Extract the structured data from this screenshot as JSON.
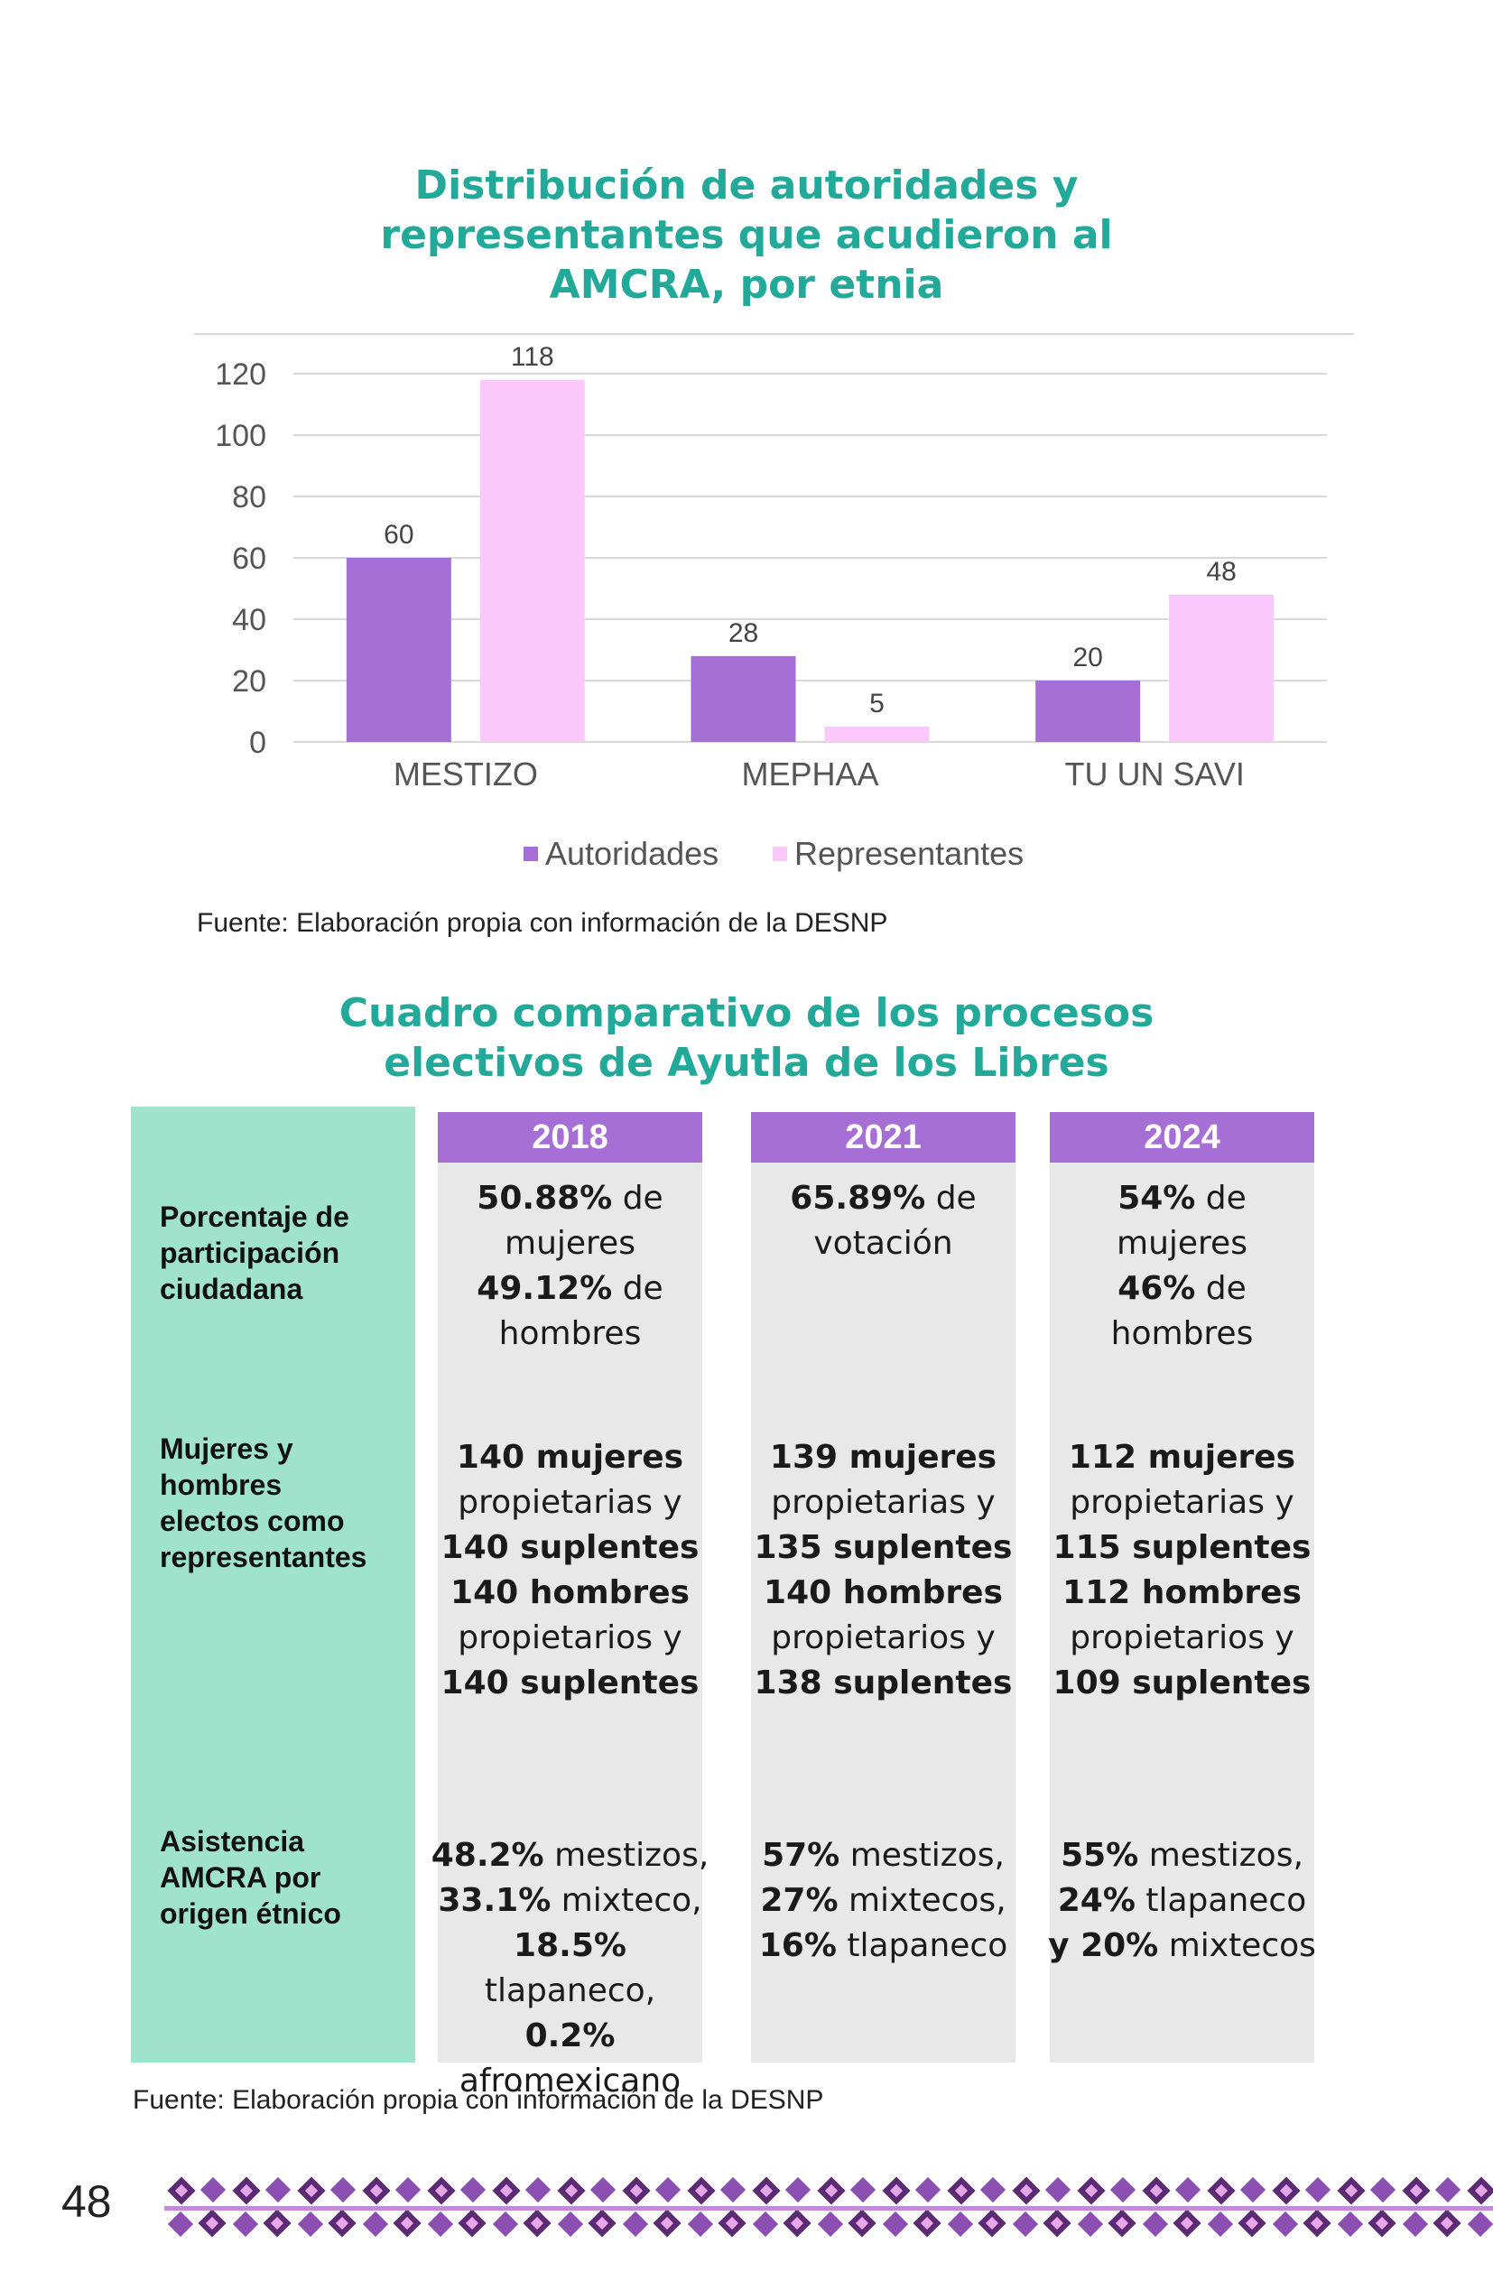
{
  "chart_data": {
    "type": "bar",
    "title": "Distribución de autoridades y representantes que acudieron al AMCRA, por etnia",
    "categories": [
      "MESTIZO",
      "MEPHAA",
      "TU UN SAVI"
    ],
    "series": [
      {
        "name": "Autoridades",
        "values": [
          60,
          28,
          20
        ],
        "color": "#a56fd6"
      },
      {
        "name": "Representantes",
        "values": [
          118,
          5,
          48
        ],
        "color": "#fbc8fb"
      }
    ],
    "ylim": [
      0,
      120
    ],
    "yticks": [
      "0",
      "20",
      "40",
      "60",
      "80",
      "100",
      "120"
    ],
    "grid": true,
    "legend": "bottom"
  },
  "chart_title_lines": [
    "Distribución de autoridades y",
    "representantes que acudieron al",
    "AMCRA, por etnia"
  ],
  "source_1": "Fuente: Elaboración propia con información de la DESNP",
  "table": {
    "title_lines": [
      "Cuadro comparativo de los procesos",
      "electivos de Ayutla de los Libres"
    ],
    "row_labels": [
      [
        "Porcentaje de",
        "participación",
        "ciudadana"
      ],
      [
        "Mujeres y",
        "hombres",
        "electos como",
        "representantes"
      ],
      [
        "Asistencia",
        "AMCRA por",
        "origen étnico"
      ]
    ],
    "columns": [
      {
        "year": "2018",
        "participation": [
          {
            "b": "50.88%",
            "t": " de"
          },
          {
            "b": "",
            "t": "mujeres"
          },
          {
            "b": "49.12%",
            "t": " de"
          },
          {
            "b": "",
            "t": "hombres"
          }
        ],
        "elected": [
          {
            "b": "140 mujeres",
            "t": ""
          },
          {
            "b": "",
            "t": "propietarias y"
          },
          {
            "b": "140 suplentes",
            "t": ""
          },
          {
            "b": "140 hombres",
            "t": ""
          },
          {
            "b": "",
            "t": "propietarios y"
          },
          {
            "b": "140 suplentes",
            "t": ""
          }
        ],
        "attendance": [
          {
            "b": "48.2%",
            "t": " mestizos,"
          },
          {
            "b": "33.1%",
            "t": " mixteco,"
          },
          {
            "b": "18.5%",
            "t": " tlapaneco,"
          },
          {
            "b": "0.2%",
            "t": ""
          },
          {
            "b": "",
            "t": "afromexicano"
          }
        ]
      },
      {
        "year": "2021",
        "participation": [
          {
            "b": "65.89%",
            "t": " de"
          },
          {
            "b": "",
            "t": "votación"
          }
        ],
        "elected": [
          {
            "b": "139 mujeres",
            "t": ""
          },
          {
            "b": "",
            "t": "propietarias y"
          },
          {
            "b": "135 suplentes",
            "t": ""
          },
          {
            "b": "140 hombres",
            "t": ""
          },
          {
            "b": "",
            "t": "propietarios y"
          },
          {
            "b": "138 suplentes",
            "t": ""
          }
        ],
        "attendance": [
          {
            "b": "57%",
            "t": " mestizos,"
          },
          {
            "b": "27%",
            "t": " mixtecos,"
          },
          {
            "b": "16%",
            "t": " tlapaneco"
          }
        ]
      },
      {
        "year": "2024",
        "participation": [
          {
            "b": "54%",
            "t": " de"
          },
          {
            "b": "",
            "t": "mujeres"
          },
          {
            "b": "46%",
            "t": " de"
          },
          {
            "b": "",
            "t": "hombres"
          }
        ],
        "elected": [
          {
            "b": "112 mujeres",
            "t": ""
          },
          {
            "b": "",
            "t": "propietarias y"
          },
          {
            "b": "115 suplentes",
            "t": ""
          },
          {
            "b": "112 hombres",
            "t": ""
          },
          {
            "b": "",
            "t": "propietarios y"
          },
          {
            "b": "109 suplentes",
            "t": ""
          }
        ],
        "attendance": [
          {
            "b": "55%",
            "t": " mestizos,"
          },
          {
            "b": "24%",
            "t": " tlapaneco"
          },
          {
            "b": "y 20%",
            "t": " mixtecos"
          }
        ]
      }
    ]
  },
  "source_2": "Fuente: Elaboración propia con información de la DESNP",
  "page_number": "48",
  "colors": {
    "teal_title": "#22a99a",
    "label_column": "#9fe3cc",
    "header_purple": "#a56fd6",
    "cell_gray": "#e8e8e8"
  }
}
